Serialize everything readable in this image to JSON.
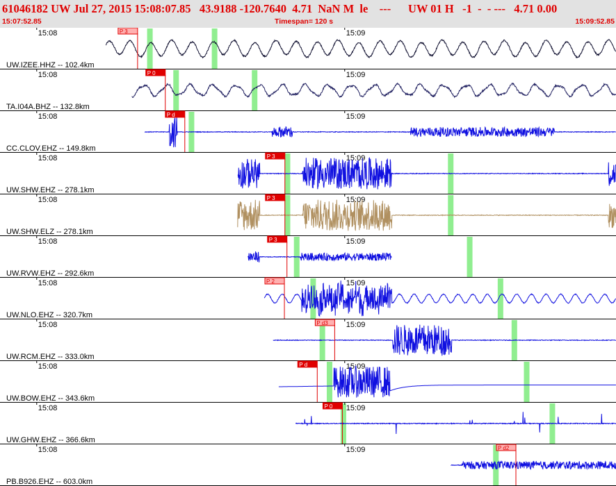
{
  "header": {
    "title": "61046182 UW Jul 27, 2015 15:08:07.85   43.9188 -120.7640  4.71  NaN M  le    ---      UW 01 H   -1  -  - ---   4.71 0.00",
    "start_time": "15:07:52.85",
    "timespan": "Timespan= 120 s",
    "end_time": "15:09:52.85"
  },
  "colors": {
    "header_bg": "#e2e2e2",
    "header_text": "#e00000",
    "trace_blue": "#1010e0",
    "trace_dark": "#101030",
    "trace_navy": "#202060",
    "trace_tan": "#b09060",
    "pick_red": "#e00000",
    "pick_pink": "#ffb0b0",
    "green_band": "#90ee90"
  },
  "chart_data": {
    "type": "line",
    "title": "",
    "time_window_s": [
      0,
      120
    ],
    "ticks": [
      {
        "label": "15:08",
        "t": 7.15
      },
      {
        "label": "15:09",
        "t": 67.15
      }
    ],
    "grid": false,
    "series": [
      {
        "name": "UW.IZEE.HHZ",
        "label": "UW.IZEE.HHZ  --  102.4km",
        "color": "dark",
        "start": 20.6,
        "end": 120,
        "style": "lowfreq",
        "bursts": [],
        "bands": [
          29.2,
          41.8
        ],
        "picks": [
          {
            "label": "P 3",
            "t": 26.8,
            "filled": false
          }
        ]
      },
      {
        "name": "TA.I04A.BHZ",
        "label": "TA.I04A.BHZ  --  132.8km",
        "color": "navy",
        "start": 25.7,
        "end": 120,
        "style": "lowfreq2",
        "bursts": [],
        "bands": [
          34.3,
          49.6
        ],
        "picks": [
          {
            "label": "P 0",
            "t": 32.2,
            "filled": true
          }
        ]
      },
      {
        "name": "CC.CLOV.EHZ",
        "label": "CC.CLOV.EHZ  --  149.8km",
        "color": "blue",
        "start": 28.2,
        "end": 120,
        "style": "flat",
        "bursts": [
          [
            33.0,
            34.5,
            1.0
          ],
          [
            53.0,
            57.0,
            0.35
          ],
          [
            80.0,
            108.0,
            0.3
          ]
        ],
        "bands": [
          37.3
        ],
        "picks": [
          {
            "label": "P d",
            "t": 36.0,
            "filled": true
          }
        ]
      },
      {
        "name": "UW.SHW.EHZ",
        "label": "UW.SHW.EHZ  --  278.1km",
        "color": "blue",
        "start": 46.3,
        "end": 120,
        "style": "flat",
        "bursts": [
          [
            46.3,
            50.6,
            0.95
          ],
          [
            58.9,
            76.3,
            1.0
          ],
          [
            118.5,
            120,
            0.8
          ]
        ],
        "bands": [
          56.0,
          87.8
        ],
        "picks": [
          {
            "label": "P 3",
            "t": 55.5,
            "filled": true
          }
        ]
      },
      {
        "name": "UW.SHW.ELZ",
        "label": "UW.SHW.ELZ  --  278.1km",
        "color": "tan",
        "start": 46.3,
        "end": 120,
        "style": "flat",
        "bursts": [
          [
            46.3,
            50.6,
            1.0
          ],
          [
            58.9,
            76.3,
            1.0
          ],
          [
            118.5,
            120,
            0.8
          ]
        ],
        "bands": [
          56.0,
          87.8
        ],
        "picks": [
          {
            "label": "P 3",
            "t": 55.5,
            "filled": true
          }
        ]
      },
      {
        "name": "UW.RVW.EHZ",
        "label": "UW.RVW.EHZ  --  292.6km",
        "color": "blue",
        "start": 48.3,
        "end": 76.3,
        "style": "flat",
        "bursts": [
          [
            48.3,
            50.5,
            0.35
          ],
          [
            58.5,
            76.3,
            0.25
          ]
        ],
        "bands": [
          57.8,
          91.5
        ],
        "picks": [
          {
            "label": "P 3",
            "t": 55.9,
            "filled": true
          }
        ]
      },
      {
        "name": "UW.NLO.EHZ",
        "label": "UW.NLO.EHZ  --  320.7km",
        "color": "blue",
        "start": 51.5,
        "end": 120,
        "style": "wavy",
        "bursts": [
          [
            58.8,
            76.3,
            1.0
          ]
        ],
        "bands": [
          61.0,
          97.5
        ],
        "picks": [
          {
            "label": "P 2",
            "t": 55.4,
            "filled": false
          }
        ]
      },
      {
        "name": "UW.RCM.EHZ",
        "label": "UW.RCM.EHZ  --  333.0km",
        "color": "blue",
        "start": 53.2,
        "end": 120,
        "style": "flat",
        "bursts": [
          [
            76.5,
            88.0,
            1.0
          ]
        ],
        "bands": [
          62.8,
          100.2
        ],
        "picks": [
          {
            "label": "P d3",
            "t": 65.2,
            "filled": false
          }
        ]
      },
      {
        "name": "UW.BOW.EHZ",
        "label": "UW.BOW.EHZ  --  343.6km",
        "color": "blue",
        "start": 54.3,
        "end": 120,
        "style": "bow",
        "bursts": [
          [
            65.0,
            76.0,
            1.0
          ]
        ],
        "bands": [
          64.2,
          102.6
        ],
        "picks": [
          {
            "label": "P d",
            "t": 61.8,
            "filled": true
          }
        ]
      },
      {
        "name": "UW.GHW.EHZ",
        "label": "UW.GHW.EHZ  --  366.6km",
        "color": "blue",
        "start": 57.6,
        "end": 120,
        "style": "spiky",
        "bursts": [],
        "bands": [
          66.9,
          107.6
        ],
        "picks": [
          {
            "label": "P 0",
            "t": 66.7,
            "filled": true
          }
        ]
      },
      {
        "name": "PB.B926.EHZ",
        "label": "PB.B926.EHZ  --  603.0km",
        "color": "blue",
        "start": 87.8,
        "end": 120,
        "style": "flat",
        "bursts": [
          [
            90.0,
            120,
            0.25
          ]
        ],
        "bands": [
          96.6
        ],
        "picks": [
          {
            "label": "P d2",
            "t": 100.5,
            "filled": false
          }
        ]
      }
    ]
  }
}
